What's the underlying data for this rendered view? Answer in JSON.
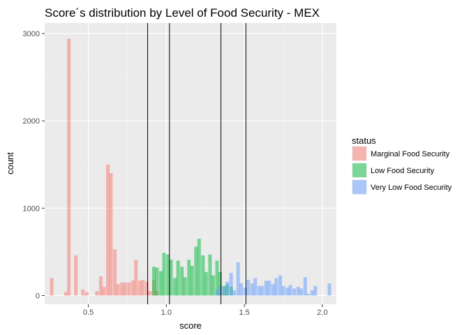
{
  "chart_data": {
    "type": "bar",
    "title": "Score´s distribution by Level of Food Security - MEX",
    "xlabel": "score",
    "ylabel": "count",
    "xlim": [
      0.22,
      2.09
    ],
    "ylim": [
      -100,
      3120
    ],
    "xticks": [
      0.5,
      1.0,
      1.5,
      2.0
    ],
    "xtick_labels": [
      "0.5",
      "1.0",
      "1.5",
      "2.0"
    ],
    "yticks": [
      0,
      1000,
      2000,
      3000
    ],
    "ytick_labels": [
      "0",
      "1000",
      "2000",
      "3000"
    ],
    "bin_width": 0.0225,
    "grid": true,
    "background": "#ebebeb",
    "legend": {
      "title": "status",
      "position": "right"
    },
    "vlines": [
      0.88,
      1.02,
      1.35,
      1.51
    ],
    "series": [
      {
        "name": "Marginal Food Security",
        "color": "#f8766d",
        "opacity": 0.5,
        "bins": [
          {
            "x": 0.265,
            "y": 200
          },
          {
            "x": 0.355,
            "y": 40
          },
          {
            "x": 0.375,
            "y": 2940
          },
          {
            "x": 0.42,
            "y": 460
          },
          {
            "x": 0.465,
            "y": 70
          },
          {
            "x": 0.49,
            "y": 40
          },
          {
            "x": 0.555,
            "y": 50
          },
          {
            "x": 0.58,
            "y": 220
          },
          {
            "x": 0.6,
            "y": 100
          },
          {
            "x": 0.625,
            "y": 1500
          },
          {
            "x": 0.645,
            "y": 1400
          },
          {
            "x": 0.67,
            "y": 530
          },
          {
            "x": 0.69,
            "y": 130
          },
          {
            "x": 0.715,
            "y": 150
          },
          {
            "x": 0.735,
            "y": 150
          },
          {
            "x": 0.76,
            "y": 150
          },
          {
            "x": 0.785,
            "y": 170
          },
          {
            "x": 0.805,
            "y": 410
          },
          {
            "x": 0.83,
            "y": 170
          },
          {
            "x": 0.85,
            "y": 180
          },
          {
            "x": 0.875,
            "y": 160
          },
          {
            "x": 0.895,
            "y": 50
          },
          {
            "x": 0.92,
            "y": 180
          },
          {
            "x": 0.94,
            "y": 50
          }
        ]
      },
      {
        "name": "Low Food Security",
        "color": "#00ba38",
        "opacity": 0.5,
        "bins": [
          {
            "x": 0.92,
            "y": 330
          },
          {
            "x": 0.94,
            "y": 320
          },
          {
            "x": 0.965,
            "y": 280
          },
          {
            "x": 0.985,
            "y": 490
          },
          {
            "x": 1.01,
            "y": 470
          },
          {
            "x": 1.03,
            "y": 410
          },
          {
            "x": 1.055,
            "y": 200
          },
          {
            "x": 1.075,
            "y": 400
          },
          {
            "x": 1.1,
            "y": 330
          },
          {
            "x": 1.12,
            "y": 210
          },
          {
            "x": 1.145,
            "y": 410
          },
          {
            "x": 1.165,
            "y": 340
          },
          {
            "x": 1.19,
            "y": 560
          },
          {
            "x": 1.21,
            "y": 650
          },
          {
            "x": 1.235,
            "y": 460
          },
          {
            "x": 1.255,
            "y": 270
          },
          {
            "x": 1.28,
            "y": 470
          },
          {
            "x": 1.3,
            "y": 230
          },
          {
            "x": 1.325,
            "y": 400
          },
          {
            "x": 1.345,
            "y": 270
          },
          {
            "x": 1.37,
            "y": 110
          },
          {
            "x": 1.39,
            "y": 130
          },
          {
            "x": 1.415,
            "y": 100
          }
        ]
      },
      {
        "name": "Very Low Food Security",
        "color": "#619cff",
        "opacity": 0.5,
        "bins": [
          {
            "x": 1.325,
            "y": 70
          },
          {
            "x": 1.345,
            "y": 110
          },
          {
            "x": 1.37,
            "y": 100
          },
          {
            "x": 1.39,
            "y": 160
          },
          {
            "x": 1.415,
            "y": 260
          },
          {
            "x": 1.435,
            "y": 60
          },
          {
            "x": 1.46,
            "y": 380
          },
          {
            "x": 1.48,
            "y": 140
          },
          {
            "x": 1.505,
            "y": 90
          },
          {
            "x": 1.525,
            "y": 180
          },
          {
            "x": 1.55,
            "y": 140
          },
          {
            "x": 1.57,
            "y": 200
          },
          {
            "x": 1.595,
            "y": 110
          },
          {
            "x": 1.615,
            "y": 110
          },
          {
            "x": 1.64,
            "y": 170
          },
          {
            "x": 1.66,
            "y": 170
          },
          {
            "x": 1.685,
            "y": 130
          },
          {
            "x": 1.705,
            "y": 200
          },
          {
            "x": 1.73,
            "y": 230
          },
          {
            "x": 1.75,
            "y": 110
          },
          {
            "x": 1.775,
            "y": 90
          },
          {
            "x": 1.795,
            "y": 120
          },
          {
            "x": 1.82,
            "y": 80
          },
          {
            "x": 1.845,
            "y": 100
          },
          {
            "x": 1.865,
            "y": 80
          },
          {
            "x": 1.89,
            "y": 210
          },
          {
            "x": 1.91,
            "y": 20
          },
          {
            "x": 1.935,
            "y": 60
          },
          {
            "x": 1.955,
            "y": 110
          },
          {
            "x": 2.045,
            "y": 140
          }
        ]
      }
    ]
  }
}
